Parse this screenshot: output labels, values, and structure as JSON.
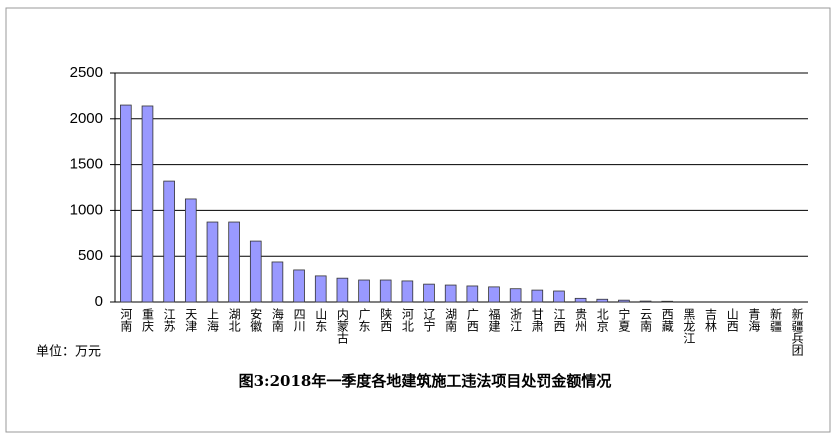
{
  "chart_data": {
    "type": "bar",
    "title": "图3:2018年一季度各地建筑施工违法项目处罚金额情况",
    "unit_label": "单位：万元",
    "categories": [
      "河南",
      "重庆",
      "江苏",
      "天津",
      "上海",
      "湖北",
      "安徽",
      "海南",
      "四川",
      "山东",
      "内蒙古",
      "广东",
      "陕西",
      "河北",
      "辽宁",
      "湖南",
      "广西",
      "福建",
      "浙江",
      "甘肃",
      "江西",
      "贵州",
      "北京",
      "宁夏",
      "云南",
      "西藏",
      "黑龙江",
      "吉林",
      "山西",
      "青海",
      "新疆",
      "新疆兵团"
    ],
    "values": [
      2150,
      2140,
      1320,
      1125,
      873,
      873,
      665,
      437,
      350,
      285,
      260,
      240,
      240,
      230,
      195,
      185,
      175,
      165,
      145,
      130,
      120,
      40,
      30,
      20,
      10,
      8,
      0,
      0,
      0,
      0,
      0,
      0
    ],
    "color": "#9999ff",
    "ylim": [
      0,
      2500
    ],
    "yticks": [
      0,
      500,
      1000,
      1500,
      2000,
      2500
    ],
    "grid": true
  }
}
